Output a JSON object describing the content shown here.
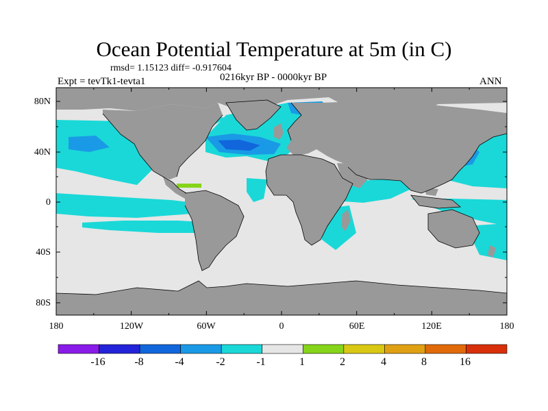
{
  "title": "Ocean Potential Temperature at 5m (in C)",
  "stats": "rmsd= 1.15123 diff= -0.917604",
  "period": "0216kyr BP - 0000kyr BP",
  "experiment": "Expt = tevTk1-tevta1",
  "season": "ANN",
  "lat_labels": [
    "80N",
    "40N",
    "0",
    "40S",
    "80S"
  ],
  "lon_labels": [
    "180",
    "120W",
    "60W",
    "0",
    "60E",
    "120E",
    "180"
  ],
  "colorbar": {
    "labels": [
      "-16",
      "-8",
      "-4",
      "-2",
      "-1",
      "1",
      "2",
      "4",
      "8",
      "16"
    ],
    "colors": [
      "#8a1be8",
      "#2323d9",
      "#1166dc",
      "#1a9ae6",
      "#1ad8d8",
      "#e6e6e6",
      "#86d41a",
      "#d8c814",
      "#e0a014",
      "#e06a0a",
      "#d8300a"
    ]
  },
  "map_colors": {
    "land": "#999999",
    "ocean_neutral": "#e6e6e6",
    "cool_light": "#1ad8d8",
    "cool_mid": "#1a9ae6",
    "cool_strong": "#1166dc",
    "warm_light": "#86d41a",
    "coast": "#000000"
  }
}
